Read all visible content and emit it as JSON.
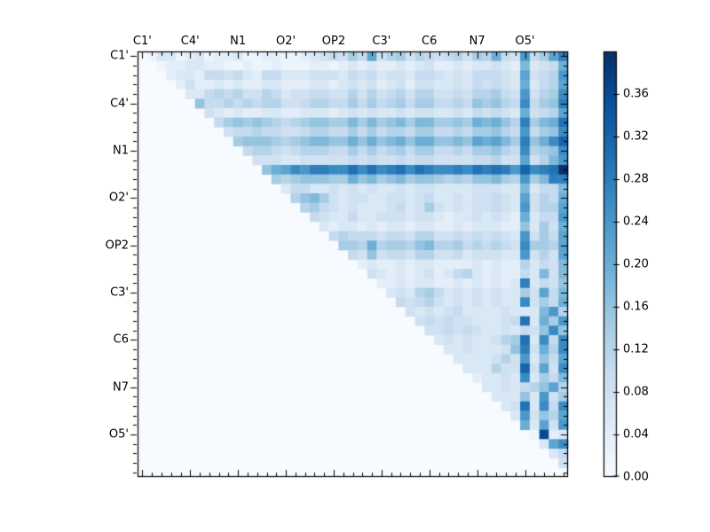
{
  "figure": {
    "background": "#ffffff",
    "border_color": "#000000",
    "text_color": "#000000"
  },
  "chart_data": {
    "type": "heatmap",
    "title": "",
    "n": 45,
    "structure": "upper-triangular pairwise matrix; diagonal and lower triangle are 0",
    "group_labels": [
      "C1'",
      "C4'",
      "N1",
      "O2'",
      "OP2",
      "C3'",
      "C6",
      "N7",
      "O5'"
    ],
    "group_tick_cells": [
      0,
      5,
      10,
      15,
      20,
      25,
      30,
      35,
      40
    ],
    "axes": {
      "top_labels": true,
      "left_labels": true,
      "minor_tick_every_cell": true,
      "major_tick_every": 5
    },
    "vmin": 0.0,
    "vmax": 0.4,
    "value_encoding": "each string is row i of the matrix: space-separated integers (value*100) for columns i+1..44; all other cells are 0",
    "matrix_upper_rows": [
      "2 6 6 2 4 6 2 4 4 6 2 2 4 4 2 2 4 6 8 10 8 14 10 22 8 12 14 8 12 10 8 10 12 8 14 12 20 10 8 24 10 14 22 28",
      "2 4 4 6 6 4 4 2 2 4 2 2 4 2 2 2 4 4 2 4 6 4 6 4 4 6 4 6 8 4 4 6 4 6 6 8 6 4 18 6 8 10 20",
      "4 6 6 4 10 10 8 10 6 4 10 10 6 6 6 8 8 8 6 10 8 10 6 8 8 6 10 10 8 6 8 6 10 10 10 8 6 22 8 10 12 24",
      "4 8 4 4 6 4 6 4 4 6 6 4 4 4 6 6 4 6 8 6 8 4 6 8 4 8 8 6 6 8 6 10 8 10 8 6 20 6 10 12 22",
      "6 6 10 12 10 12 8 8 12 10 6 8 8 10 10 8 8 12 8 12 8 10 12 8 12 12 8 8 10 8 12 12 14 10 8 24 8 12 14 26",
      "16 10 10 12 10 12 10 12 12 8 8 10 12 12 10 10 14 10 14 10 12 14 10 14 14 10 10 12 10 16 14 16 12 10 26 10 14 16 28",
      "8 6 4 6 4 4 6 6 4 4 6 6 6 4 6 8 6 8 6 6 8 6 8 8 6 6 8 6 10 8 10 8 6 20 8 10 12 22",
      "10 14 16 14 16 14 12 10 12 14 16 16 14 14 18 14 18 14 16 18 14 18 18 14 14 16 14 20 18 20 16 12 28 14 18 20 30",
      "8 10 10 12 10 10 8 8 10 12 12 10 10 14 10 14 10 12 12 10 14 14 10 10 12 10 14 14 16 12 10 24 10 14 16 26",
      "14 16 16 16 14 12 14 16 18 18 16 16 20 16 20 16 18 20 16 20 20 16 16 18 16 22 20 22 18 14 28 16 20 26 32",
      "10 12 12 10 8 10 12 12 12 10 10 14 10 14 10 12 14 10 14 14 10 10 12 10 14 14 16 12 10 26 12 14 16 26",
      "8 8 8 6 6 8 8 8 8 8 10 8 10 8 8 10 8 10 10 8 8 8 8 10 10 12 8 8 22 8 12 18 24",
      "16 20 22 26 24 28 28 26 26 30 26 30 26 28 30 26 30 28 26 26 28 26 30 28 30 28 24 32 26 28 30 40",
      "14 12 14 16 16 16 14 14 20 16 18 14 16 18 14 16 16 14 12 14 12 16 16 18 14 12 24 14 18 28 28",
      "6 10 10 6 6 8 6 8 6 8 6 6 8 6 8 8 6 6 6 6 8 8 8 6 6 18 6 10 10 18",
      "12 16 18 14 8 6 8 8 6 6 8 8 6 8 10 6 6 8 6 8 8 10 8 6 22 8 12 10 20",
      "12 14 10 8 6 8 6 6 6 8 10 6 8 14 8 6 8 6 8 8 10 8 6 24 8 12 12 22",
      "10 8 6 6 10 6 6 8 8 8 6 8 8 6 4 6 6 8 6 8 6 4 20 6 10 10 24",
      "6 4 6 6 4 6 4 6 6 4 6 6 4 4 6 4 6 6 6 4 4 16 6 14 8 20",
      "10 12 10 10 10 8 10 10 8 12 12 8 8 10 8 10 8 10 8 6 24 8 14 10 22",
      "14 14 12 20 12 14 14 12 16 18 12 12 14 10 12 10 12 10 8 26 14 14 12 22",
      "10 8 16 8 10 10 8 12 12 8 8 10 6 8 8 8 6 6 24 8 12 8 22",
      "4 6 4 4 6 4 6 6 4 4 4 4 6 4 6 4 4 12 6 10 8 18",
      "8 6 4 6 4 6 8 4 6 10 12 6 4 6 4 4 10 6 18 8 18",
      "4 4 6 4 6 6 4 4 6 4 6 4 6 4 6 28 6 10 8 16",
      "6 8 6 12 14 10 6 8 6 8 6 8 6 6 14 8 22 10 18",
      "10 8 10 12 8 6 8 6 8 6 8 6 6 26 8 14 10 20",
      "8 6 8 6 8 10 6 6 6 6 8 6 6 6 18 24 12",
      "8 10 8 10 8 8 6 6 6 8 10 30 6 20 14 24",
      "8 8 10 8 10 8 6 6 8 6 10 8 16 26 16",
      "6 8 6 8 6 6 8 12 14 30 6 26 10 26",
      "6 6 8 6 6 6 8 16 28 8 20 12 26",
      "6 6 6 6 8 12 8 24 6 16 10 22",
      "6 6 6 12 8 8 32 8 22 8 26",
      "4 6 6 8 6 26 6 14 10 18",
      "6 6 8 6 10 12 16 22 12",
      "6 6 6 16 6 24 8 14",
      "6 8 30 6 26 10 26",
      "6 24 8 16 12 22",
      "20 6 22 8 24",
      "2 36 4 6",
      "6 22 26",
      "6 10",
      "8",
      ""
    ],
    "colormap": {
      "name": "Blues",
      "stops": [
        [
          0.0,
          "#f7fbff"
        ],
        [
          0.125,
          "#deebf7"
        ],
        [
          0.25,
          "#c6dbef"
        ],
        [
          0.375,
          "#9ecae1"
        ],
        [
          0.5,
          "#6baed6"
        ],
        [
          0.625,
          "#4292c6"
        ],
        [
          0.75,
          "#2171b5"
        ],
        [
          0.875,
          "#08519c"
        ],
        [
          1.0,
          "#08306b"
        ]
      ]
    },
    "colorbar": {
      "tick_labels": [
        "0.00",
        "0.04",
        "0.08",
        "0.12",
        "0.16",
        "0.20",
        "0.24",
        "0.28",
        "0.32",
        "0.36"
      ],
      "tick_values": [
        0.0,
        0.04,
        0.08,
        0.12,
        0.16,
        0.2,
        0.24,
        0.28,
        0.32,
        0.36
      ],
      "orientation": "vertical",
      "position": "right"
    },
    "layout_hints": {
      "grid": false,
      "legend": "none",
      "plot_background_value": 0.0
    }
  }
}
